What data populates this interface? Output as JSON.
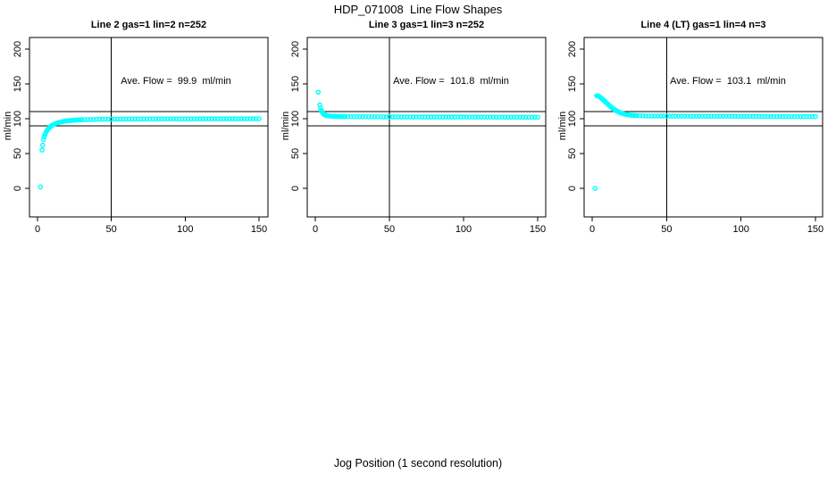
{
  "chart_data": {
    "type": "scatter",
    "title": "HDP_071008  Line Flow Shapes",
    "xlabel": "Jog Position (1 second resolution)",
    "marker_color": "#00FFFF",
    "axis_color": "#000000",
    "x_ticks": [
      0,
      50,
      100,
      150
    ],
    "y_ticks": [
      0,
      50,
      100,
      150,
      200
    ],
    "xlim": [
      0,
      150
    ],
    "ylim": [
      0,
      200
    ],
    "grid": false,
    "legend": "none",
    "ref_lines_h": [
      90,
      110
    ],
    "ref_line_v": 50,
    "panels": [
      {
        "title": "Line 2 gas=1 lin=2 n=252",
        "ylabel": "ml/min",
        "annotation": "Ave. Flow =  99.9  ml/min",
        "ave_flow": 99.9,
        "n": 252,
        "points": [
          [
            2,
            2
          ],
          [
            3,
            55
          ],
          [
            3.5,
            62
          ],
          [
            4,
            70
          ],
          [
            4.5,
            74
          ],
          [
            5,
            77
          ],
          [
            5.5,
            79.5
          ],
          [
            6,
            81.5
          ],
          [
            6.5,
            83.2
          ],
          [
            7,
            84.7
          ],
          [
            7.5,
            86
          ],
          [
            8,
            87.2
          ],
          [
            8.5,
            88.2
          ],
          [
            9,
            89.1
          ],
          [
            9.5,
            89.9
          ],
          [
            10,
            90.6
          ],
          [
            11,
            91.8
          ],
          [
            12,
            92.8
          ],
          [
            13,
            93.6
          ],
          [
            14,
            94.3
          ],
          [
            15,
            94.9
          ],
          [
            16,
            95.4
          ],
          [
            17,
            95.9
          ],
          [
            18,
            96.3
          ],
          [
            19,
            96.6
          ],
          [
            20,
            96.9
          ],
          [
            21,
            97.2
          ],
          [
            22,
            97.4
          ],
          [
            23,
            97.6
          ],
          [
            24,
            97.8
          ],
          [
            25,
            97.9
          ],
          [
            26,
            98.1
          ],
          [
            27,
            98.2
          ],
          [
            28,
            98.3
          ],
          [
            29,
            98.4
          ],
          [
            30,
            98.5
          ],
          [
            32,
            98.6
          ],
          [
            34,
            98.8
          ],
          [
            36,
            98.9
          ],
          [
            38,
            99
          ],
          [
            40,
            99.1
          ],
          [
            42,
            99.1
          ],
          [
            44,
            99.2
          ],
          [
            46,
            99.2
          ],
          [
            48,
            99.3
          ],
          [
            50,
            99.3
          ],
          [
            52,
            99.4
          ],
          [
            54,
            99.4
          ],
          [
            56,
            99.4
          ],
          [
            58,
            99.5
          ],
          [
            60,
            99.5
          ],
          [
            62,
            99.5
          ],
          [
            64,
            99.5
          ],
          [
            66,
            99.6
          ],
          [
            68,
            99.6
          ],
          [
            70,
            99.6
          ],
          [
            72,
            99.6
          ],
          [
            74,
            99.6
          ],
          [
            76,
            99.7
          ],
          [
            78,
            99.7
          ],
          [
            80,
            99.7
          ],
          [
            82,
            99.7
          ],
          [
            84,
            99.7
          ],
          [
            86,
            99.7
          ],
          [
            88,
            99.7
          ],
          [
            90,
            99.8
          ],
          [
            92,
            99.8
          ],
          [
            94,
            99.8
          ],
          [
            96,
            99.8
          ],
          [
            98,
            99.8
          ],
          [
            100,
            99.8
          ],
          [
            102,
            99.8
          ],
          [
            104,
            99.8
          ],
          [
            106,
            99.8
          ],
          [
            108,
            99.8
          ],
          [
            110,
            99.9
          ],
          [
            112,
            99.9
          ],
          [
            114,
            99.9
          ],
          [
            116,
            99.9
          ],
          [
            118,
            99.9
          ],
          [
            120,
            99.9
          ],
          [
            122,
            99.9
          ],
          [
            124,
            99.9
          ],
          [
            126,
            99.9
          ],
          [
            128,
            99.9
          ],
          [
            130,
            99.9
          ],
          [
            132,
            99.9
          ],
          [
            134,
            99.9
          ],
          [
            136,
            99.9
          ],
          [
            138,
            99.9
          ],
          [
            140,
            100
          ],
          [
            142,
            100
          ],
          [
            144,
            100
          ],
          [
            146,
            100
          ],
          [
            148,
            100
          ],
          [
            150,
            100
          ]
        ]
      },
      {
        "title": "Line 3 gas=1 lin=3 n=252",
        "ylabel": "ml/min",
        "annotation": "Ave. Flow =  101.8  ml/min",
        "ave_flow": 101.8,
        "n": 252,
        "points": [
          [
            2,
            138
          ],
          [
            3,
            120
          ],
          [
            3.5,
            115.5
          ],
          [
            4,
            112
          ],
          [
            4.5,
            110
          ],
          [
            5,
            108.3
          ],
          [
            5.5,
            107
          ],
          [
            6,
            106
          ],
          [
            6.5,
            105.4
          ],
          [
            7,
            104.9
          ],
          [
            7.5,
            104.6
          ],
          [
            8,
            104.3
          ],
          [
            9,
            104
          ],
          [
            10,
            103.8
          ],
          [
            11,
            103.6
          ],
          [
            12,
            103.5
          ],
          [
            13,
            103.4
          ],
          [
            14,
            103.3
          ],
          [
            15,
            103.3
          ],
          [
            16,
            103.2
          ],
          [
            17,
            103.2
          ],
          [
            18,
            103.1
          ],
          [
            19,
            103.1
          ],
          [
            20,
            103.1
          ],
          [
            22,
            103
          ],
          [
            24,
            103
          ],
          [
            26,
            103
          ],
          [
            28,
            102.9
          ],
          [
            30,
            102.9
          ],
          [
            32,
            102.9
          ],
          [
            34,
            102.9
          ],
          [
            36,
            102.8
          ],
          [
            38,
            102.8
          ],
          [
            40,
            102.8
          ],
          [
            42,
            102.8
          ],
          [
            44,
            102.8
          ],
          [
            46,
            102.7
          ],
          [
            48,
            102.7
          ],
          [
            50,
            102.7
          ],
          [
            52,
            102.7
          ],
          [
            54,
            102.7
          ],
          [
            56,
            102.7
          ],
          [
            58,
            102.6
          ],
          [
            60,
            102.6
          ],
          [
            62,
            102.6
          ],
          [
            64,
            102.6
          ],
          [
            66,
            102.6
          ],
          [
            68,
            102.6
          ],
          [
            70,
            102.6
          ],
          [
            72,
            102.5
          ],
          [
            74,
            102.5
          ],
          [
            76,
            102.5
          ],
          [
            78,
            102.5
          ],
          [
            80,
            102.5
          ],
          [
            82,
            102.5
          ],
          [
            84,
            102.5
          ],
          [
            86,
            102.5
          ],
          [
            88,
            102.4
          ],
          [
            90,
            102.4
          ],
          [
            92,
            102.4
          ],
          [
            94,
            102.4
          ],
          [
            96,
            102.4
          ],
          [
            98,
            102.4
          ],
          [
            100,
            102.4
          ],
          [
            102,
            102.4
          ],
          [
            104,
            102.3
          ],
          [
            106,
            102.3
          ],
          [
            108,
            102.3
          ],
          [
            110,
            102.3
          ],
          [
            112,
            102.3
          ],
          [
            114,
            102.3
          ],
          [
            116,
            102.3
          ],
          [
            118,
            102.3
          ],
          [
            120,
            102.3
          ],
          [
            122,
            102.2
          ],
          [
            124,
            102.2
          ],
          [
            126,
            102.2
          ],
          [
            128,
            102.2
          ],
          [
            130,
            102.2
          ],
          [
            132,
            102.2
          ],
          [
            134,
            102.2
          ],
          [
            136,
            102.2
          ],
          [
            138,
            102.2
          ],
          [
            140,
            102.2
          ],
          [
            142,
            102.1
          ],
          [
            144,
            102.1
          ],
          [
            146,
            102.1
          ],
          [
            148,
            102.1
          ],
          [
            150,
            102.1
          ]
        ]
      },
      {
        "title": "Line 4 (LT) gas=1 lin=4 n=3",
        "ylabel": "ml/min",
        "annotation": "Ave. Flow =  103.1  ml/min",
        "ave_flow": 103.1,
        "n": 3,
        "points": [
          [
            2,
            0
          ],
          [
            3,
            133
          ],
          [
            3.5,
            133
          ],
          [
            4,
            132.6
          ],
          [
            4.5,
            132.1
          ],
          [
            5,
            131.4
          ],
          [
            5.5,
            130.6
          ],
          [
            6,
            129.8
          ],
          [
            6.5,
            128.9
          ],
          [
            7,
            128
          ],
          [
            7.5,
            127
          ],
          [
            8,
            126
          ],
          [
            8.5,
            125
          ],
          [
            9,
            124
          ],
          [
            9.5,
            123
          ],
          [
            10,
            122
          ],
          [
            10.5,
            121
          ],
          [
            11,
            120
          ],
          [
            11.5,
            119
          ],
          [
            12,
            118.1
          ],
          [
            12.5,
            117.2
          ],
          [
            13,
            116.3
          ],
          [
            13.5,
            115.4
          ],
          [
            14,
            114.6
          ],
          [
            14.5,
            113.8
          ],
          [
            15,
            113.1
          ],
          [
            15.5,
            112.4
          ],
          [
            16,
            111.7
          ],
          [
            16.5,
            111.1
          ],
          [
            17,
            110.5
          ],
          [
            17.5,
            110
          ],
          [
            18,
            109.5
          ],
          [
            18.5,
            109
          ],
          [
            19,
            108.6
          ],
          [
            19.5,
            108.2
          ],
          [
            20,
            107.8
          ],
          [
            21,
            107.2
          ],
          [
            22,
            106.6
          ],
          [
            23,
            106.1
          ],
          [
            24,
            105.7
          ],
          [
            25,
            105.4
          ],
          [
            26,
            105.1
          ],
          [
            27,
            104.9
          ],
          [
            28,
            104.7
          ],
          [
            29,
            104.5
          ],
          [
            30,
            104.4
          ],
          [
            32,
            104.2
          ],
          [
            34,
            104.1
          ],
          [
            36,
            104
          ],
          [
            38,
            103.9
          ],
          [
            40,
            103.9
          ],
          [
            42,
            103.8
          ],
          [
            44,
            103.8
          ],
          [
            46,
            103.8
          ],
          [
            48,
            103.7
          ],
          [
            50,
            103.7
          ],
          [
            52,
            103.7
          ],
          [
            54,
            103.7
          ],
          [
            56,
            103.6
          ],
          [
            58,
            103.6
          ],
          [
            60,
            103.6
          ],
          [
            62,
            103.6
          ],
          [
            64,
            103.6
          ],
          [
            66,
            103.5
          ],
          [
            68,
            103.5
          ],
          [
            70,
            103.5
          ],
          [
            72,
            103.5
          ],
          [
            74,
            103.5
          ],
          [
            76,
            103.5
          ],
          [
            78,
            103.5
          ],
          [
            80,
            103.4
          ],
          [
            82,
            103.4
          ],
          [
            84,
            103.4
          ],
          [
            86,
            103.4
          ],
          [
            88,
            103.4
          ],
          [
            90,
            103.4
          ],
          [
            92,
            103.4
          ],
          [
            94,
            103.4
          ],
          [
            96,
            103.3
          ],
          [
            98,
            103.3
          ],
          [
            100,
            103.3
          ],
          [
            102,
            103.3
          ],
          [
            104,
            103.3
          ],
          [
            106,
            103.3
          ],
          [
            108,
            103.3
          ],
          [
            110,
            103.3
          ],
          [
            112,
            103.3
          ],
          [
            114,
            103.3
          ],
          [
            116,
            103.2
          ],
          [
            118,
            103.2
          ],
          [
            120,
            103.2
          ],
          [
            122,
            103.2
          ],
          [
            124,
            103.2
          ],
          [
            126,
            103.2
          ],
          [
            128,
            103.2
          ],
          [
            130,
            103.2
          ],
          [
            132,
            103.2
          ],
          [
            134,
            103.2
          ],
          [
            136,
            103.2
          ],
          [
            138,
            103.1
          ],
          [
            140,
            103.1
          ],
          [
            142,
            103.1
          ],
          [
            144,
            103.1
          ],
          [
            146,
            103.1
          ],
          [
            148,
            103.1
          ],
          [
            150,
            103.1
          ]
        ]
      }
    ]
  }
}
